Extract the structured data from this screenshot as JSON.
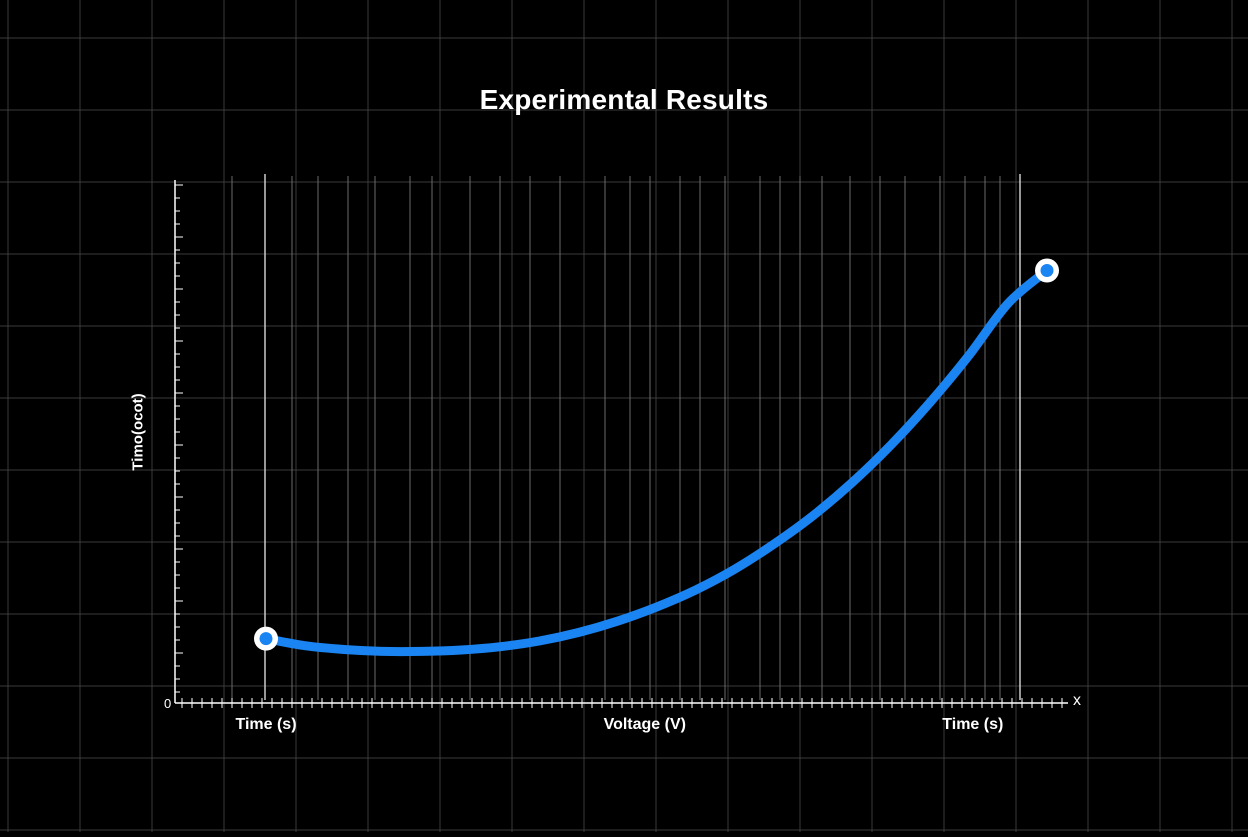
{
  "chart_data": {
    "type": "line",
    "title": "Experimental Results",
    "ylabel": "Timo(ocot)",
    "x_tick_labels": [
      "Time (s)",
      "Voltage (V)",
      "Time (s)"
    ],
    "x_tick_positions": [
      0.0,
      0.485,
      0.905
    ],
    "x_end_label": "x",
    "y_origin_label": "0",
    "xlim": [
      0,
      1
    ],
    "ylim": [
      0,
      1
    ],
    "series": [
      {
        "color": "#1a84f2",
        "x": [
          0.0,
          0.05,
          0.1,
          0.15,
          0.2,
          0.25,
          0.3,
          0.35,
          0.4,
          0.45,
          0.5,
          0.55,
          0.6,
          0.65,
          0.7,
          0.75,
          0.8,
          0.85,
          0.9,
          0.95,
          1.0
        ],
        "y": [
          0.13,
          0.115,
          0.107,
          0.103,
          0.103,
          0.106,
          0.113,
          0.125,
          0.143,
          0.167,
          0.197,
          0.233,
          0.277,
          0.33,
          0.39,
          0.46,
          0.54,
          0.63,
          0.73,
          0.84,
          0.91
        ],
        "markers": "endpoints"
      }
    ],
    "grid": true,
    "background": "#000000"
  }
}
